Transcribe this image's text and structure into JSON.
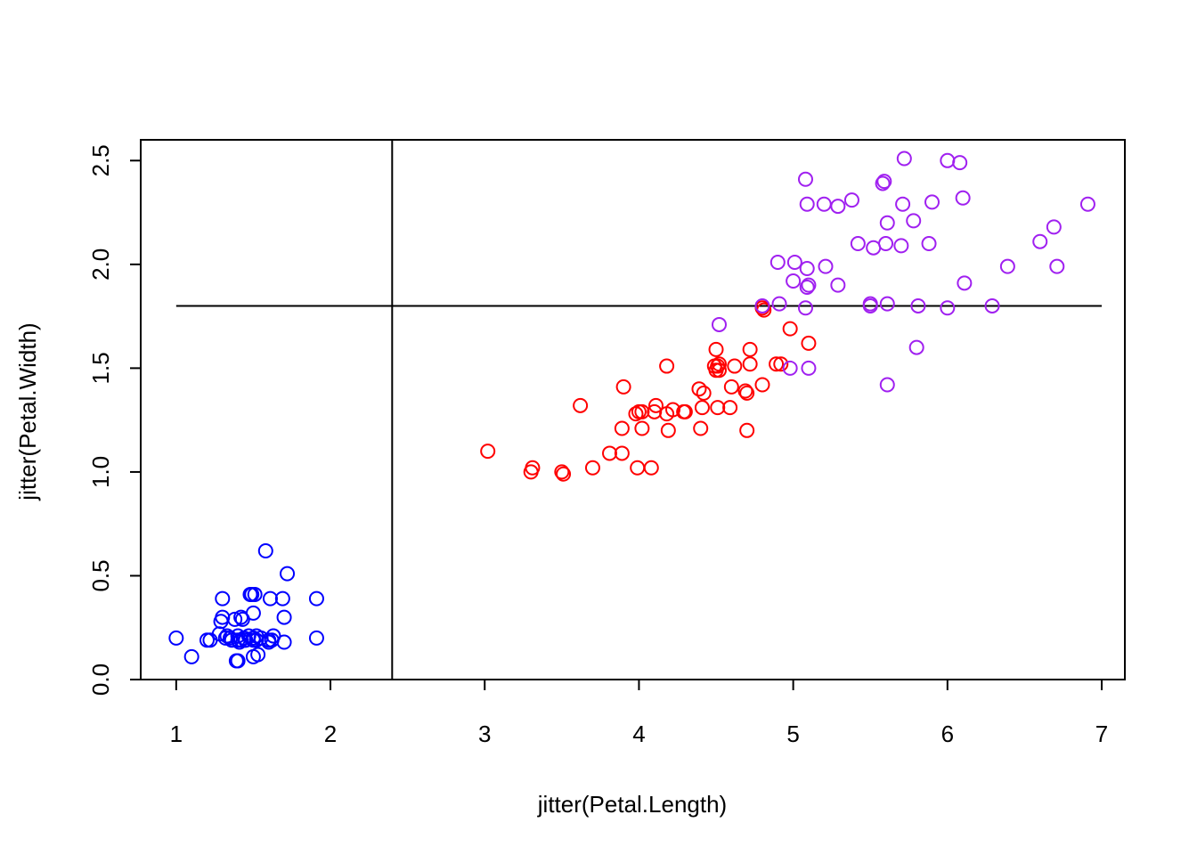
{
  "chart_data": {
    "type": "scatter",
    "title": "",
    "xlabel": "jitter(Petal.Length)",
    "ylabel": "jitter(Petal.Width)",
    "xlim": [
      0.77,
      7.15
    ],
    "ylim": [
      0.0,
      2.6
    ],
    "x_ticks": [
      1,
      2,
      3,
      4,
      5,
      6,
      7
    ],
    "x_tick_labels": [
      "1",
      "2",
      "3",
      "4",
      "5",
      "6",
      "7"
    ],
    "y_ticks": [
      0.0,
      0.5,
      1.0,
      1.5,
      2.0,
      2.5
    ],
    "y_tick_labels": [
      "0.0",
      "0.5",
      "1.0",
      "1.5",
      "2.0",
      "2.5"
    ],
    "grid": false,
    "legend": "none",
    "marker": "open-circle",
    "reference_lines": [
      {
        "orientation": "vertical",
        "x": 2.4,
        "y_range": [
          0.0,
          2.6
        ]
      },
      {
        "orientation": "horizontal",
        "y": 1.8,
        "x_range": [
          1.0,
          7.0
        ]
      }
    ],
    "series": [
      {
        "color": "#0000ff",
        "points": [
          [
            1.0,
            0.2
          ],
          [
            1.1,
            0.11
          ],
          [
            1.2,
            0.19
          ],
          [
            1.22,
            0.19
          ],
          [
            1.28,
            0.22
          ],
          [
            1.29,
            0.28
          ],
          [
            1.3,
            0.3
          ],
          [
            1.3,
            0.39
          ],
          [
            1.32,
            0.2
          ],
          [
            1.33,
            0.21
          ],
          [
            1.36,
            0.19
          ],
          [
            1.38,
            0.29
          ],
          [
            1.4,
            0.21
          ],
          [
            1.4,
            0.19
          ],
          [
            1.41,
            0.18
          ],
          [
            1.4,
            0.09
          ],
          [
            1.39,
            0.09
          ],
          [
            1.42,
            0.3
          ],
          [
            1.43,
            0.29
          ],
          [
            1.44,
            0.2
          ],
          [
            1.45,
            0.19
          ],
          [
            1.47,
            0.21
          ],
          [
            1.48,
            0.41
          ],
          [
            1.49,
            0.41
          ],
          [
            1.5,
            0.32
          ],
          [
            1.5,
            0.2
          ],
          [
            1.5,
            0.19
          ],
          [
            1.5,
            0.11
          ],
          [
            1.51,
            0.41
          ],
          [
            1.52,
            0.21
          ],
          [
            1.52,
            0.19
          ],
          [
            1.53,
            0.12
          ],
          [
            1.55,
            0.2
          ],
          [
            1.58,
            0.62
          ],
          [
            1.6,
            0.19
          ],
          [
            1.6,
            0.18
          ],
          [
            1.61,
            0.39
          ],
          [
            1.62,
            0.19
          ],
          [
            1.63,
            0.21
          ],
          [
            1.69,
            0.39
          ],
          [
            1.7,
            0.3
          ],
          [
            1.7,
            0.18
          ],
          [
            1.72,
            0.51
          ],
          [
            1.91,
            0.39
          ],
          [
            1.91,
            0.2
          ],
          [
            1.45,
            0.19
          ],
          [
            1.35,
            0.2
          ],
          [
            1.42,
            0.19
          ]
        ]
      },
      {
        "color": "#ff0000",
        "points": [
          [
            3.02,
            1.1
          ],
          [
            3.3,
            1.0
          ],
          [
            3.31,
            1.02
          ],
          [
            3.5,
            1.0
          ],
          [
            3.51,
            0.99
          ],
          [
            3.62,
            1.32
          ],
          [
            3.7,
            1.02
          ],
          [
            3.81,
            1.09
          ],
          [
            3.89,
            1.09
          ],
          [
            3.89,
            1.21
          ],
          [
            3.9,
            1.41
          ],
          [
            3.98,
            1.28
          ],
          [
            3.99,
            1.02
          ],
          [
            4.0,
            1.29
          ],
          [
            4.02,
            1.29
          ],
          [
            4.02,
            1.21
          ],
          [
            4.08,
            1.02
          ],
          [
            4.1,
            1.29
          ],
          [
            4.11,
            1.32
          ],
          [
            4.18,
            1.28
          ],
          [
            4.18,
            1.51
          ],
          [
            4.19,
            1.2
          ],
          [
            4.22,
            1.3
          ],
          [
            4.29,
            1.29
          ],
          [
            4.3,
            1.29
          ],
          [
            4.39,
            1.4
          ],
          [
            4.4,
            1.21
          ],
          [
            4.41,
            1.31
          ],
          [
            4.42,
            1.38
          ],
          [
            4.49,
            1.51
          ],
          [
            4.5,
            1.59
          ],
          [
            4.5,
            1.49
          ],
          [
            4.51,
            1.31
          ],
          [
            4.51,
            1.51
          ],
          [
            4.52,
            1.49
          ],
          [
            4.52,
            1.52
          ],
          [
            4.59,
            1.31
          ],
          [
            4.6,
            1.41
          ],
          [
            4.62,
            1.51
          ],
          [
            4.69,
            1.39
          ],
          [
            4.7,
            1.2
          ],
          [
            4.7,
            1.38
          ],
          [
            4.72,
            1.52
          ],
          [
            4.72,
            1.59
          ],
          [
            4.8,
            1.42
          ],
          [
            4.8,
            1.79
          ],
          [
            4.81,
            1.78
          ],
          [
            4.89,
            1.52
          ],
          [
            4.92,
            1.52
          ],
          [
            4.98,
            1.69
          ],
          [
            5.1,
            1.62
          ]
        ]
      },
      {
        "color": "#a020f0",
        "points": [
          [
            4.52,
            1.71
          ],
          [
            4.8,
            1.8
          ],
          [
            4.9,
            2.01
          ],
          [
            4.91,
            1.81
          ],
          [
            4.98,
            1.5
          ],
          [
            5.0,
            1.92
          ],
          [
            5.01,
            2.01
          ],
          [
            5.08,
            2.41
          ],
          [
            5.09,
            2.29
          ],
          [
            5.09,
            1.98
          ],
          [
            5.09,
            1.89
          ],
          [
            5.1,
            1.9
          ],
          [
            5.08,
            1.79
          ],
          [
            5.1,
            1.5
          ],
          [
            5.2,
            2.29
          ],
          [
            5.21,
            1.99
          ],
          [
            5.29,
            2.28
          ],
          [
            5.29,
            1.9
          ],
          [
            5.38,
            2.31
          ],
          [
            5.42,
            2.1
          ],
          [
            5.5,
            1.8
          ],
          [
            5.5,
            1.81
          ],
          [
            5.52,
            2.08
          ],
          [
            5.58,
            2.39
          ],
          [
            5.59,
            2.4
          ],
          [
            5.6,
            2.1
          ],
          [
            5.61,
            2.2
          ],
          [
            5.61,
            1.81
          ],
          [
            5.61,
            1.42
          ],
          [
            5.7,
            2.09
          ],
          [
            5.71,
            2.29
          ],
          [
            5.72,
            2.51
          ],
          [
            5.78,
            2.21
          ],
          [
            5.8,
            1.6
          ],
          [
            5.81,
            1.8
          ],
          [
            5.88,
            2.1
          ],
          [
            5.9,
            2.3
          ],
          [
            6.0,
            2.5
          ],
          [
            6.0,
            1.79
          ],
          [
            6.08,
            2.49
          ],
          [
            6.1,
            2.32
          ],
          [
            6.11,
            1.91
          ],
          [
            6.29,
            1.8
          ],
          [
            6.39,
            1.99
          ],
          [
            6.6,
            2.11
          ],
          [
            6.69,
            2.18
          ],
          [
            6.71,
            1.99
          ],
          [
            6.91,
            2.29
          ]
        ]
      }
    ]
  }
}
